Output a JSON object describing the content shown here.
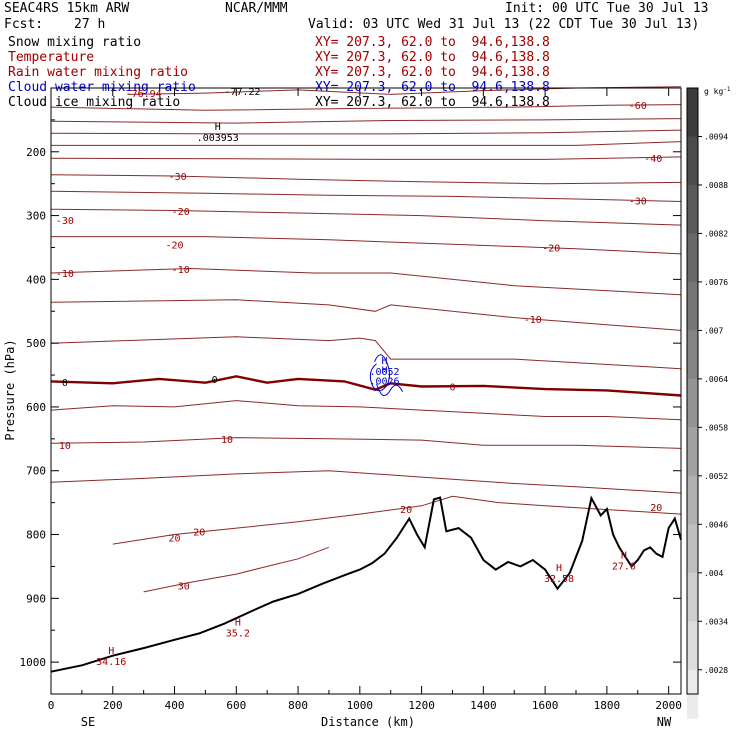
{
  "header": {
    "model": "SEAC4RS 15km ARW",
    "center": "NCAR/MMM",
    "init": "Init: 00 UTC Tue 30 Jul 13",
    "fcst_label": "Fcst:",
    "fcst_value": "27 h",
    "valid": "Valid: 03 UTC Wed 31 Jul 13 (22 CDT Tue 30 Jul 13)"
  },
  "fields": [
    {
      "label": "Snow mixing ratio",
      "xy": "",
      "color": "#000000"
    },
    {
      "label": "Temperature",
      "xy": "XY= 207.3, 62.0 to  94.6,138.8",
      "color": "#a00000"
    },
    {
      "label": "Rain water mixing ratio",
      "xy": "XY= 207.3, 62.0 to  94.6,138.8",
      "color": "#a00000"
    },
    {
      "label": "Cloud water mixing ratio",
      "xy": "XY= 207.3, 62.0 to  94.6,138.8",
      "color": "#0000cc"
    },
    {
      "label": "Cloud ice mixing ratio",
      "xy": "XY= 207.3, 62.0 to  94.6,138.8",
      "color": "#000000"
    }
  ],
  "xy_first": "XY= 207.3, 62.0 to  94.6,138.8",
  "chart_data": {
    "type": "line",
    "title": "",
    "xlabel": "Distance (km)",
    "ylabel": "Pressure (hPa)",
    "xlim": [
      0,
      2040
    ],
    "ylim": [
      1050,
      100
    ],
    "x_ticks": [
      0,
      200,
      400,
      600,
      800,
      1000,
      1200,
      1400,
      1600,
      1800,
      2000
    ],
    "y_ticks": [
      200,
      300,
      400,
      500,
      600,
      700,
      800,
      900,
      1000
    ],
    "x_end_labels": {
      "left": "SE",
      "right": "NW"
    },
    "colorbar": {
      "units": "g kg-1",
      "units_text": "g kg",
      "units_sup": "-1",
      "labels": [
        ".0094",
        ".0088",
        ".0082",
        ".0076",
        ".007",
        ".0064",
        ".0058",
        ".0052",
        ".0046",
        ".004",
        ".0034",
        ".0028"
      ]
    },
    "terrain": [
      [
        0,
        1015
      ],
      [
        100,
        1005
      ],
      [
        200,
        990
      ],
      [
        300,
        978
      ],
      [
        400,
        965
      ],
      [
        480,
        955
      ],
      [
        560,
        940
      ],
      [
        650,
        920
      ],
      [
        720,
        905
      ],
      [
        800,
        893
      ],
      [
        880,
        877
      ],
      [
        960,
        862
      ],
      [
        1000,
        855
      ],
      [
        1040,
        845
      ],
      [
        1080,
        830
      ],
      [
        1120,
        805
      ],
      [
        1160,
        775
      ],
      [
        1185,
        800
      ],
      [
        1210,
        820
      ],
      [
        1240,
        745
      ],
      [
        1260,
        742
      ],
      [
        1280,
        795
      ],
      [
        1320,
        790
      ],
      [
        1360,
        805
      ],
      [
        1400,
        840
      ],
      [
        1440,
        855
      ],
      [
        1480,
        843
      ],
      [
        1520,
        850
      ],
      [
        1560,
        840
      ],
      [
        1600,
        855
      ],
      [
        1640,
        885
      ],
      [
        1680,
        860
      ],
      [
        1720,
        810
      ],
      [
        1750,
        743
      ],
      [
        1780,
        770
      ],
      [
        1800,
        760
      ],
      [
        1820,
        800
      ],
      [
        1840,
        820
      ],
      [
        1860,
        835
      ],
      [
        1880,
        850
      ],
      [
        1900,
        840
      ],
      [
        1920,
        825
      ],
      [
        1940,
        820
      ],
      [
        1960,
        830
      ],
      [
        1980,
        835
      ],
      [
        2000,
        790
      ],
      [
        2020,
        775
      ],
      [
        2040,
        808
      ]
    ],
    "isotherms": [
      {
        "label": "-76.94",
        "points": [
          [
            250,
            110
          ],
          [
            500,
            108
          ],
          [
            800,
            103
          ],
          [
            1100,
            110
          ],
          [
            1400,
            104
          ],
          [
            1700,
            100
          ],
          [
            2040,
            98
          ]
        ],
        "label_at": [
          300,
          108
        ]
      },
      {
        "label": "-60",
        "points": [
          [
            0,
            130
          ],
          [
            500,
            135
          ],
          [
            1000,
            132
          ],
          [
            1500,
            130
          ],
          [
            1800,
            127
          ],
          [
            2040,
            126
          ]
        ],
        "label_at": [
          1900,
          127
        ]
      },
      {
        "label": "",
        "points": [
          [
            0,
            152
          ],
          [
            600,
            155
          ],
          [
            1100,
            151
          ],
          [
            1600,
            150
          ],
          [
            2040,
            148
          ]
        ]
      },
      {
        "label": "",
        "points": [
          [
            0,
            171
          ],
          [
            600,
            172
          ],
          [
            1100,
            172
          ],
          [
            1600,
            170
          ],
          [
            2040,
            166
          ]
        ]
      },
      {
        "label": "",
        "points": [
          [
            0,
            190
          ],
          [
            600,
            190
          ],
          [
            1200,
            190
          ],
          [
            1700,
            190
          ],
          [
            2040,
            184
          ]
        ]
      },
      {
        "label": "-40",
        "points": [
          [
            0,
            210
          ],
          [
            600,
            211
          ],
          [
            1100,
            212
          ],
          [
            1600,
            212
          ],
          [
            2040,
            208
          ]
        ],
        "label_at": [
          1950,
          210
        ]
      },
      {
        "label": "-30",
        "points": [
          [
            0,
            236
          ],
          [
            400,
            238
          ],
          [
            800,
            243
          ],
          [
            1200,
            247
          ],
          [
            1600,
            250
          ],
          [
            2040,
            248
          ]
        ],
        "label_at": [
          410,
          238
        ]
      },
      {
        "label": "-30",
        "points": [
          [
            0,
            262
          ],
          [
            500,
            265
          ],
          [
            900,
            268
          ],
          [
            1300,
            270
          ],
          [
            1700,
            274
          ],
          [
            2040,
            278
          ]
        ],
        "label_at": [
          1900,
          276
        ]
      },
      {
        "label": "-20",
        "points": [
          [
            0,
            290
          ],
          [
            400,
            292
          ],
          [
            800,
            296
          ],
          [
            1200,
            300
          ],
          [
            1600,
            308
          ],
          [
            2040,
            315
          ]
        ],
        "label_at": [
          420,
          293
        ]
      },
      {
        "label": "-20",
        "points": [
          [
            0,
            333
          ],
          [
            500,
            333
          ],
          [
            900,
            338
          ],
          [
            1300,
            345
          ],
          [
            1700,
            352
          ],
          [
            2040,
            360
          ]
        ],
        "label_at": [
          1620,
          350
        ]
      },
      {
        "label": "-10",
        "points": [
          [
            0,
            390
          ],
          [
            450,
            383
          ],
          [
            850,
            390
          ],
          [
            1100,
            390
          ],
          [
            1500,
            410
          ],
          [
            2040,
            424
          ]
        ],
        "label_at": [
          420,
          384
        ]
      },
      {
        "label": "-10",
        "points": [
          [
            0,
            436
          ],
          [
            600,
            432
          ],
          [
            900,
            440
          ],
          [
            1050,
            450
          ],
          [
            1100,
            440
          ],
          [
            1500,
            460
          ],
          [
            2040,
            480
          ]
        ],
        "label_at": [
          1560,
          462
        ]
      },
      {
        "label": "",
        "points": [
          [
            0,
            500
          ],
          [
            300,
            495
          ],
          [
            600,
            490
          ],
          [
            900,
            496
          ],
          [
            1000,
            492
          ],
          [
            1050,
            496
          ],
          [
            1100,
            525
          ],
          [
            1500,
            525
          ],
          [
            2040,
            540
          ]
        ]
      },
      {
        "label": "0",
        "thick": true,
        "points": [
          [
            0,
            560
          ],
          [
            200,
            563
          ],
          [
            350,
            556
          ],
          [
            500,
            562
          ],
          [
            600,
            552
          ],
          [
            700,
            562
          ],
          [
            800,
            556
          ],
          [
            950,
            560
          ],
          [
            1050,
            573
          ],
          [
            1100,
            563
          ],
          [
            1200,
            568
          ],
          [
            1400,
            567
          ],
          [
            1600,
            572
          ],
          [
            1800,
            574
          ],
          [
            2040,
            582
          ]
        ],
        "label_at": [
          1300,
          568
        ]
      },
      {
        "label": "",
        "points": [
          [
            0,
            605
          ],
          [
            200,
            598
          ],
          [
            400,
            600
          ],
          [
            600,
            590
          ],
          [
            800,
            598
          ],
          [
            1000,
            600
          ],
          [
            1200,
            605
          ],
          [
            1400,
            610
          ],
          [
            1600,
            615
          ],
          [
            1800,
            615
          ],
          [
            2040,
            620
          ]
        ]
      },
      {
        "label": "10",
        "points": [
          [
            0,
            657
          ],
          [
            300,
            655
          ],
          [
            600,
            648
          ],
          [
            900,
            650
          ],
          [
            1200,
            652
          ],
          [
            1400,
            660
          ],
          [
            1700,
            660
          ],
          [
            2040,
            665
          ]
        ],
        "label_at": [
          570,
          650
        ]
      },
      {
        "label": "",
        "points": [
          [
            0,
            718
          ],
          [
            300,
            712
          ],
          [
            600,
            705
          ],
          [
            900,
            700
          ],
          [
            1200,
            710
          ],
          [
            1500,
            720
          ],
          [
            1700,
            725
          ],
          [
            2040,
            735
          ]
        ]
      },
      {
        "label": "20",
        "points": [
          [
            200,
            815
          ],
          [
            400,
            800
          ],
          [
            600,
            790
          ],
          [
            800,
            780
          ],
          [
            1000,
            768
          ],
          [
            1200,
            755
          ],
          [
            1300,
            740
          ],
          [
            1450,
            750
          ],
          [
            1600,
            755
          ],
          [
            2040,
            768
          ]
        ],
        "label_at": [
          480,
          795
        ]
      },
      {
        "label": "30",
        "points": [
          [
            300,
            890
          ],
          [
            450,
            875
          ],
          [
            600,
            862
          ],
          [
            700,
            850
          ],
          [
            800,
            838
          ],
          [
            900,
            820
          ]
        ],
        "label_at": [
          430,
          880
        ]
      }
    ],
    "extrema": [
      {
        "type": "H",
        "value": ".003953",
        "x": 540,
        "p": 178
      },
      {
        "type": "H",
        "value": ".0052",
        "x": 1080,
        "p": 545
      },
      {
        "type": "H",
        "value": ".0026",
        "x": 1080,
        "p": 560
      },
      {
        "type": "H",
        "value": "34.16",
        "x": 195,
        "p": 1000
      },
      {
        "type": "H",
        "value": "35.2",
        "x": 605,
        "p": 955
      },
      {
        "type": "H",
        "value": "32.58",
        "x": 1645,
        "p": 870
      },
      {
        "type": "H",
        "value": "27.6",
        "x": 1855,
        "p": 850
      }
    ],
    "inline_labels": [
      {
        "text": "-77.22",
        "x": 620,
        "p": 105,
        "color": "#000000"
      },
      {
        "text": "0",
        "x": 45,
        "p": 561,
        "color": "#000000"
      },
      {
        "text": "0",
        "x": 530,
        "p": 556,
        "color": "#000000"
      },
      {
        "text": "-10",
        "x": 45,
        "p": 390,
        "color": "#a00000"
      },
      {
        "text": "10",
        "x": 45,
        "p": 660,
        "color": "#a00000"
      },
      {
        "text": "20",
        "x": 1150,
        "p": 760,
        "color": "#a00000"
      },
      {
        "text": "20",
        "x": 1960,
        "p": 757,
        "color": "#a00000"
      },
      {
        "text": "20",
        "x": 400,
        "p": 805,
        "color": "#a00000"
      },
      {
        "text": "-30",
        "x": 45,
        "p": 307,
        "color": "#a00000"
      },
      {
        "text": "-20",
        "x": 400,
        "p": 345,
        "color": "#a00000"
      }
    ]
  }
}
